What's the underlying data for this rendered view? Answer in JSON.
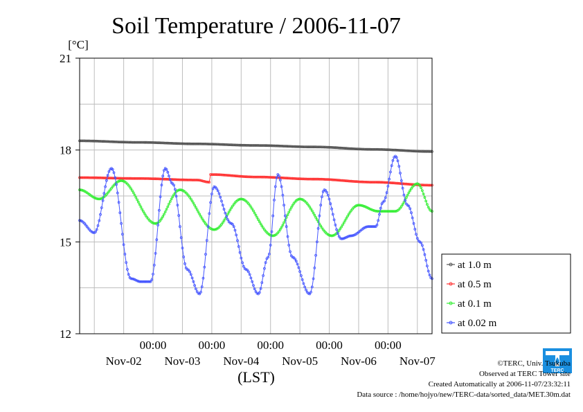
{
  "chart_data": {
    "type": "line",
    "title": "Soil Temperature / 2006-11-07",
    "ylabel": "[°C]",
    "xlabel": "(LST)",
    "ylim": [
      12,
      21
    ],
    "yticks": [
      12,
      15,
      18,
      21
    ],
    "xlim": [
      0,
      144
    ],
    "x_unit": "hours from 2006-11-01 18:00 LST",
    "time_ticks": [
      "00:00",
      "00:00",
      "00:00",
      "00:00",
      "00:00"
    ],
    "date_ticks": [
      "Nov-02",
      "Nov-03",
      "Nov-04",
      "Nov-05",
      "Nov-06",
      "Nov-07"
    ],
    "grid": true,
    "legend_position": "right",
    "series": [
      {
        "name": "at 1.0 m",
        "color": "#555555",
        "x": [
          0,
          24,
          48,
          72,
          96,
          120,
          144
        ],
        "values": [
          18.3,
          18.25,
          18.2,
          18.15,
          18.1,
          18.02,
          17.95
        ]
      },
      {
        "name": "at 0.5 m",
        "color": "#ff3333",
        "x": [
          0,
          24,
          48,
          53,
          53.5,
          72,
          96,
          120,
          144
        ],
        "values": [
          17.1,
          17.07,
          17.02,
          16.95,
          17.2,
          17.12,
          17.05,
          16.95,
          16.85
        ]
      },
      {
        "name": "at 0.1 m",
        "color": "#33ee33",
        "x": [
          0,
          8,
          17,
          31,
          41,
          55,
          66,
          79,
          90,
          103,
          114,
          122,
          129,
          138,
          144
        ],
        "values": [
          16.7,
          16.4,
          17.0,
          15.6,
          16.7,
          15.4,
          16.4,
          15.2,
          16.4,
          15.2,
          16.2,
          16.0,
          16.0,
          16.9,
          16.0
        ]
      },
      {
        "name": "at 0.02 m",
        "color": "#4455ff",
        "x": [
          0,
          6,
          13,
          21,
          25,
          29,
          35,
          38,
          44,
          49,
          55,
          62,
          68,
          73,
          77,
          81,
          87,
          94,
          100,
          107,
          111,
          118,
          121,
          124,
          129,
          134,
          139,
          144
        ],
        "values": [
          15.7,
          15.3,
          17.4,
          13.8,
          13.7,
          13.7,
          17.4,
          16.9,
          14.1,
          13.3,
          16.8,
          15.6,
          14.1,
          13.3,
          14.5,
          17.2,
          14.5,
          13.3,
          16.7,
          15.1,
          15.2,
          15.5,
          15.5,
          16.3,
          17.8,
          16.2,
          15.0,
          13.8
        ]
      }
    ]
  },
  "footer": {
    "copyright": "©TERC, Univ. Tsukuba",
    "observed": "Observed at TERC Tower site",
    "created": "Created Automatically at 2006-11-07/23:32:11",
    "source": "Data source : /home/hojyo/new/TERC-data/sorted_data/MET.30m.dat"
  },
  "logo": {
    "icon": "terc-logo-icon",
    "text": "TERC",
    "color": "#1a8fe0"
  }
}
